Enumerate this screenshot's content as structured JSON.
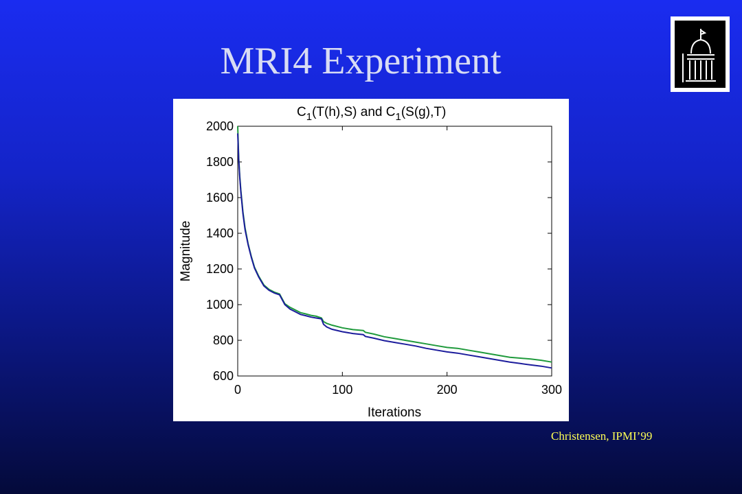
{
  "slide": {
    "title": "MRI4 Experiment",
    "caption": "Christensen, IPMI’99",
    "logo_icon": "university-dome-icon"
  },
  "colors": {
    "background_top": "#1a2cf0",
    "background_bottom": "#040a3a",
    "title_text": "#d8dcf4",
    "caption_text": "#ffff55",
    "series_green": "#1f9a3c",
    "series_blue": "#1c1c9c"
  },
  "chart_data": {
    "type": "line",
    "title_parts": [
      "C",
      "1",
      "(T(h),S) and C",
      "1",
      "(S(g),T)"
    ],
    "xlabel": "Iterations",
    "ylabel": "Magnitude",
    "xlim": [
      0,
      300
    ],
    "ylim": [
      600,
      2000
    ],
    "xticks": [
      0,
      100,
      200,
      300
    ],
    "yticks": [
      600,
      800,
      1000,
      1200,
      1400,
      1600,
      1800,
      2000
    ],
    "grid": false,
    "legend": "none",
    "series": [
      {
        "color": "#1f9a3c",
        "x": [
          0,
          1,
          2,
          3,
          5,
          7,
          10,
          13,
          16,
          20,
          25,
          30,
          35,
          40,
          45,
          50,
          55,
          60,
          65,
          70,
          75,
          80,
          82,
          85,
          90,
          100,
          110,
          120,
          122,
          130,
          140,
          150,
          160,
          170,
          180,
          190,
          200,
          210,
          220,
          230,
          240,
          250,
          260,
          270,
          280,
          290,
          300
        ],
        "y": [
          2000,
          1820,
          1720,
          1640,
          1520,
          1430,
          1340,
          1270,
          1210,
          1160,
          1110,
          1085,
          1070,
          1060,
          1005,
          985,
          970,
          955,
          948,
          940,
          935,
          925,
          905,
          895,
          885,
          870,
          860,
          855,
          845,
          835,
          820,
          810,
          800,
          790,
          780,
          770,
          760,
          755,
          745,
          735,
          725,
          715,
          705,
          700,
          695,
          688,
          678
        ]
      },
      {
        "color": "#1c1c9c",
        "x": [
          0,
          1,
          2,
          3,
          5,
          7,
          10,
          13,
          16,
          20,
          25,
          30,
          35,
          40,
          45,
          50,
          55,
          60,
          65,
          70,
          75,
          80,
          82,
          85,
          90,
          100,
          110,
          120,
          122,
          130,
          140,
          150,
          160,
          170,
          180,
          190,
          200,
          210,
          220,
          230,
          240,
          250,
          260,
          270,
          280,
          290,
          300
        ],
        "y": [
          1960,
          1810,
          1710,
          1630,
          1510,
          1420,
          1335,
          1265,
          1205,
          1155,
          1105,
          1080,
          1065,
          1055,
          1000,
          975,
          960,
          945,
          938,
          930,
          925,
          920,
          890,
          875,
          862,
          848,
          838,
          832,
          822,
          812,
          798,
          788,
          778,
          768,
          755,
          745,
          735,
          728,
          718,
          708,
          698,
          688,
          678,
          670,
          662,
          655,
          645
        ]
      }
    ]
  }
}
